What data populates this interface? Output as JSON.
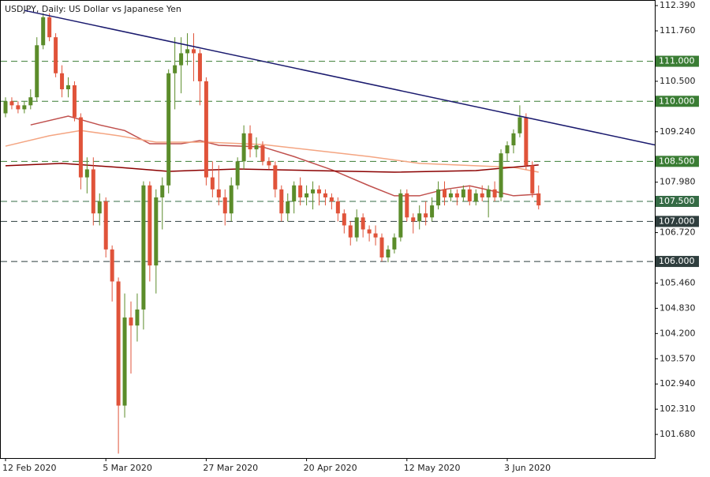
{
  "chart_data": {
    "type": "candlestick",
    "title": "USDJPY, Daily:  US Dollar vs Japanese Yen",
    "ylim": [
      101.09,
      112.53
    ],
    "yticks": [
      {
        "value": 112.39,
        "label": "112.390"
      },
      {
        "value": 111.76,
        "label": "111.760"
      },
      {
        "value": 110.5,
        "label": "110.500"
      },
      {
        "value": 109.24,
        "label": "109.240"
      },
      {
        "value": 107.98,
        "label": "107.980"
      },
      {
        "value": 106.72,
        "label": "106.720"
      },
      {
        "value": 105.46,
        "label": "105.460"
      },
      {
        "value": 104.83,
        "label": "104.830"
      },
      {
        "value": 104.2,
        "label": "104.200"
      },
      {
        "value": 103.57,
        "label": "103.570"
      },
      {
        "value": 102.94,
        "label": "102.940"
      },
      {
        "value": 102.31,
        "label": "102.310"
      },
      {
        "value": 101.68,
        "label": "101.680"
      }
    ],
    "xticks": [
      {
        "value": 0,
        "label": "12 Feb 2020"
      },
      {
        "value": 16,
        "label": "5 Mar 2020"
      },
      {
        "value": 32,
        "label": "27 Mar 2020"
      },
      {
        "value": 48,
        "label": "20 Apr 2020"
      },
      {
        "value": 64,
        "label": "12 May 2020"
      },
      {
        "value": 80,
        "label": "3 Jun 2020"
      }
    ],
    "up_color": "#5b8c2a",
    "down_color": "#e0533a",
    "open": [
      109.7,
      110.0,
      109.9,
      109.8,
      109.9,
      110.1,
      111.4,
      112.1,
      111.6,
      110.7,
      110.3,
      110.4,
      109.6,
      108.1,
      108.3,
      107.2,
      107.5,
      106.3,
      105.5,
      102.4,
      104.6,
      104.4,
      104.8,
      107.9,
      105.9,
      107.6,
      107.9,
      110.7,
      110.9,
      111.2,
      111.3,
      111.2,
      110.5,
      108.1,
      107.8,
      107.6,
      107.2,
      107.9,
      108.5,
      109.2,
      108.8,
      108.9,
      108.5,
      108.4,
      107.8,
      107.2,
      107.5,
      107.9,
      107.6,
      107.7,
      107.8,
      107.7,
      107.6,
      107.5,
      107.2,
      106.9,
      106.6,
      107.1,
      106.8,
      106.7,
      106.6,
      106.1,
      106.3,
      106.6,
      107.7,
      107.1,
      107.0,
      107.2,
      107.1,
      107.4,
      107.8,
      107.6,
      107.7,
      107.6,
      107.8,
      107.5,
      107.7,
      107.6,
      107.8,
      107.6,
      108.7,
      108.9,
      109.2,
      109.6,
      108.4,
      107.7
    ],
    "high": [
      110.1,
      110.1,
      110.0,
      110.0,
      110.3,
      111.6,
      112.2,
      112.2,
      111.7,
      110.9,
      110.6,
      110.5,
      109.7,
      108.6,
      108.6,
      107.7,
      107.6,
      106.4,
      105.6,
      105.2,
      105.0,
      105.2,
      108.0,
      108.0,
      107.8,
      108.1,
      110.8,
      111.6,
      111.6,
      111.7,
      111.7,
      111.3,
      110.6,
      108.5,
      108.4,
      107.8,
      108.1,
      108.6,
      109.4,
      109.4,
      109.1,
      109.0,
      108.6,
      108.5,
      107.9,
      107.7,
      108.0,
      108.1,
      107.9,
      108.0,
      107.9,
      107.8,
      107.7,
      107.6,
      107.3,
      107.0,
      107.3,
      107.2,
      106.9,
      106.9,
      106.7,
      106.4,
      106.7,
      107.8,
      107.8,
      107.2,
      107.4,
      107.5,
      107.6,
      108.0,
      108.0,
      107.8,
      107.8,
      107.9,
      107.9,
      107.8,
      107.9,
      107.9,
      108.0,
      108.8,
      109.0,
      109.3,
      109.9,
      109.7,
      108.5,
      107.9
    ],
    "low": [
      109.6,
      109.8,
      109.7,
      109.7,
      109.8,
      110.0,
      111.3,
      111.5,
      110.6,
      110.1,
      110.1,
      109.5,
      107.8,
      107.7,
      106.9,
      106.9,
      106.1,
      105.0,
      101.2,
      102.1,
      103.2,
      104.0,
      104.3,
      105.5,
      105.2,
      106.8,
      107.7,
      109.8,
      110.2,
      110.9,
      110.5,
      109.9,
      107.9,
      107.6,
      107.4,
      106.9,
      107.0,
      107.8,
      108.3,
      108.6,
      108.6,
      108.4,
      108.3,
      107.6,
      107.0,
      107.0,
      107.2,
      107.4,
      107.4,
      107.3,
      107.4,
      107.4,
      107.3,
      107.0,
      106.7,
      106.4,
      106.5,
      106.6,
      106.5,
      106.4,
      106.0,
      105.98,
      106.2,
      106.5,
      107.0,
      106.7,
      106.8,
      106.9,
      107.0,
      107.3,
      107.4,
      107.5,
      107.4,
      107.5,
      107.4,
      107.4,
      107.5,
      107.1,
      107.5,
      107.5,
      108.5,
      108.7,
      109.1,
      108.3,
      107.6,
      107.3
    ],
    "close": [
      110.0,
      109.9,
      109.8,
      109.9,
      110.1,
      111.4,
      112.1,
      111.6,
      110.7,
      110.3,
      110.4,
      109.6,
      108.1,
      108.3,
      107.2,
      107.5,
      106.3,
      105.5,
      102.4,
      104.6,
      104.4,
      104.8,
      107.9,
      105.9,
      107.6,
      107.9,
      110.7,
      110.9,
      111.2,
      111.3,
      111.2,
      110.5,
      108.1,
      107.8,
      107.6,
      107.2,
      107.9,
      108.5,
      109.2,
      108.8,
      108.9,
      108.5,
      108.4,
      107.8,
      107.2,
      107.5,
      107.9,
      107.6,
      107.7,
      107.8,
      107.7,
      107.6,
      107.5,
      107.2,
      106.9,
      106.6,
      107.1,
      106.8,
      106.7,
      106.6,
      106.1,
      106.3,
      106.6,
      107.7,
      107.1,
      107.0,
      107.2,
      107.1,
      107.4,
      107.8,
      107.6,
      107.7,
      107.6,
      107.8,
      107.5,
      107.7,
      107.6,
      107.8,
      107.6,
      108.7,
      108.9,
      109.2,
      109.6,
      108.4,
      107.7,
      107.4
    ],
    "lines": [
      {
        "color": "#c0504d",
        "x": [
          4,
          10,
          15,
          19,
          23,
          28,
          31,
          34,
          41,
          46,
          52,
          58,
          62,
          66,
          70,
          74,
          78,
          81,
          85
        ],
        "values": [
          109.41,
          109.63,
          109.41,
          109.27,
          108.94,
          108.94,
          109.02,
          108.9,
          108.86,
          108.62,
          108.29,
          107.89,
          107.64,
          107.64,
          107.8,
          107.89,
          107.75,
          107.64,
          107.68
        ]
      },
      {
        "color": "#f4a582",
        "x": [
          0,
          7,
          12,
          18,
          24,
          32,
          41,
          49,
          58,
          66,
          75,
          81,
          85
        ],
        "values": [
          108.88,
          109.14,
          109.27,
          109.14,
          108.98,
          108.98,
          108.92,
          108.78,
          108.62,
          108.45,
          108.39,
          108.35,
          108.23
        ]
      },
      {
        "color": "#8b0000",
        "x": [
          0,
          9,
          18,
          26,
          37,
          49,
          62,
          75,
          85
        ],
        "values": [
          108.39,
          108.45,
          108.35,
          108.25,
          108.31,
          108.27,
          108.23,
          108.27,
          108.41
        ]
      }
    ],
    "trendline": {
      "color": "#1a1a6e",
      "x": [
        3,
        85
      ],
      "values": [
        112.27,
        109.53
      ]
    },
    "levels": [
      {
        "value": 111,
        "label": "111.000",
        "color": "#3a7d34"
      },
      {
        "value": 110,
        "label": "110.000",
        "color": "#3a7d34"
      },
      {
        "value": 108.5,
        "label": "108.500",
        "color": "#3a7d34"
      },
      {
        "value": 107.5,
        "label": "107.500",
        "color": "#356b45"
      },
      {
        "value": 107,
        "label": "107.000",
        "color": "#2f3e3e"
      },
      {
        "value": 106,
        "label": "106.000",
        "color": "#2f3e3e"
      }
    ]
  }
}
